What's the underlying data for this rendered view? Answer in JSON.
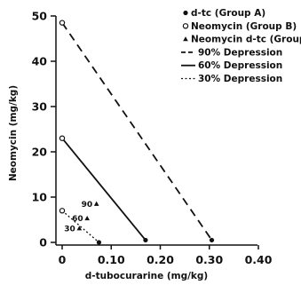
{
  "chart_data": {
    "type": "line",
    "title": "",
    "xlabel": "d-tubocurarine  (mg/kg)",
    "ylabel": "Neomycin  (mg/kg)",
    "xlim": [
      0,
      0.4
    ],
    "ylim": [
      0,
      50
    ],
    "x_ticks": [
      "0",
      "0.10",
      "0.20",
      "0.30",
      "0.40"
    ],
    "y_ticks": [
      "0",
      "10",
      "20",
      "30",
      "40",
      "50"
    ],
    "legend_position": "top-right",
    "legend": [
      {
        "marker": "filled-circle",
        "label": "d-tc (Group A)"
      },
      {
        "marker": "open-circle",
        "label": "Neomycin (Group B)"
      },
      {
        "marker": "triangle",
        "label": "Neomycin  d-tc (Group"
      },
      {
        "style": "dashed",
        "label": "90% Depression"
      },
      {
        "style": "solid",
        "label": "60% Depression"
      },
      {
        "style": "dotted",
        "label": "30% Depression"
      }
    ],
    "series": [
      {
        "name": "90% Depression",
        "style": "dashed",
        "x": [
          0,
          0.305
        ],
        "y": [
          48.5,
          0.5
        ]
      },
      {
        "name": "60% Depression",
        "style": "solid",
        "x": [
          0,
          0.17
        ],
        "y": [
          23,
          0.5
        ]
      },
      {
        "name": "30% Depression",
        "style": "dotted",
        "x": [
          0,
          0.075
        ],
        "y": [
          7,
          0
        ]
      }
    ],
    "points": [
      {
        "group": "d-tc (Group A)",
        "marker": "filled-circle",
        "x": 0.305,
        "y": 0.5
      },
      {
        "group": "d-tc (Group A)",
        "marker": "filled-circle",
        "x": 0.17,
        "y": 0.5
      },
      {
        "group": "d-tc (Group A)",
        "marker": "filled-circle",
        "x": 0.075,
        "y": 0
      },
      {
        "group": "Neomycin (Group B)",
        "marker": "open-circle",
        "x": 0,
        "y": 48.5
      },
      {
        "group": "Neomycin (Group B)",
        "marker": "open-circle",
        "x": 0,
        "y": 23
      },
      {
        "group": "Neomycin (Group B)",
        "marker": "open-circle",
        "x": 0,
        "y": 7
      },
      {
        "group": "Neomycin  d-tc (Group",
        "marker": "triangle",
        "x": 0.07,
        "y": 8.5,
        "label": "90"
      },
      {
        "group": "Neomycin  d-tc (Group",
        "marker": "triangle",
        "x": 0.051,
        "y": 5.3,
        "label": "60"
      },
      {
        "group": "Neomycin  d-tc (Group",
        "marker": "triangle",
        "x": 0.035,
        "y": 3.1,
        "label": "30"
      }
    ]
  }
}
